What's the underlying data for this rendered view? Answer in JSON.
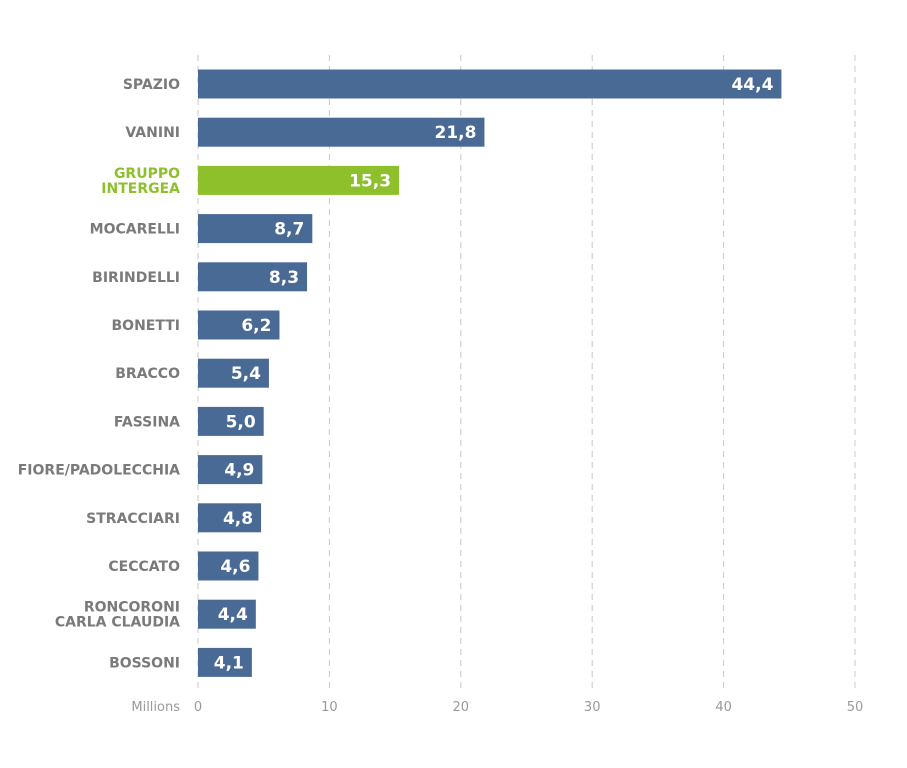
{
  "chart_data": {
    "type": "bar",
    "orientation": "horizontal",
    "categories": [
      [
        "SPAZIO"
      ],
      [
        "VANINI"
      ],
      [
        "GRUPPO",
        "INTERGEA"
      ],
      [
        "MOCARELLI"
      ],
      [
        "BIRINDELLI"
      ],
      [
        "BONETTI"
      ],
      [
        "BRACCO"
      ],
      [
        "FASSINA"
      ],
      [
        "FIORE/PADOLECCHIA"
      ],
      [
        "STRACCIARI"
      ],
      [
        "CECCATO"
      ],
      [
        "RONCORONI",
        "CARLA CLAUDIA"
      ],
      [
        "BOSSONI"
      ]
    ],
    "values": [
      44.4,
      21.8,
      15.3,
      8.7,
      8.3,
      6.2,
      5.4,
      5.0,
      4.9,
      4.8,
      4.6,
      4.4,
      4.1
    ],
    "value_labels": [
      "44,4",
      "21,8",
      "15,3",
      "8,7",
      "8,3",
      "6,2",
      "5,4",
      "5,0",
      "4,9",
      "4,8",
      "4,6",
      "4,4",
      "4,1"
    ],
    "highlight_index": 2,
    "xlim": [
      0,
      50
    ],
    "xticks": [
      0,
      10,
      20,
      30,
      40,
      50
    ],
    "xlabel": "Millions",
    "grid": true,
    "colors": {
      "bar": "#4a6a96",
      "highlight": "#8dc02a",
      "label": "#7a7a7a",
      "grid": "#c8c8c8"
    }
  }
}
